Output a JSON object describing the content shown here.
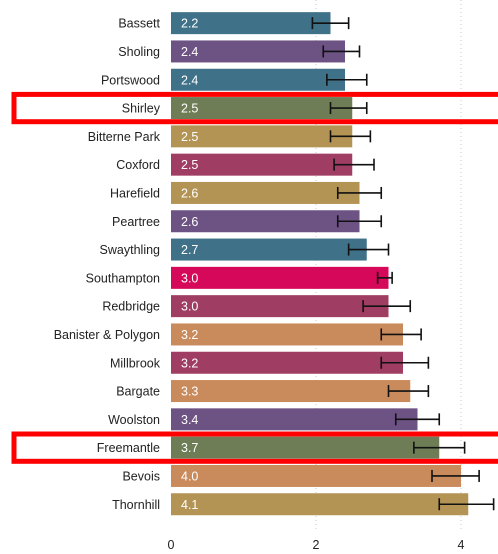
{
  "chart_data": {
    "type": "bar",
    "orientation": "horizontal",
    "categories": [
      "Bassett",
      "Sholing",
      "Portswood",
      "Shirley",
      "Bitterne Park",
      "Coxford",
      "Harefield",
      "Peartree",
      "Swaythling",
      "Southampton",
      "Redbridge",
      "Banister & Polygon",
      "Millbrook",
      "Bargate",
      "Woolston",
      "Freemantle",
      "Bevois",
      "Thornhill"
    ],
    "values": [
      2.2,
      2.4,
      2.4,
      2.5,
      2.5,
      2.5,
      2.6,
      2.6,
      2.7,
      3.0,
      3.0,
      3.2,
      3.2,
      3.3,
      3.4,
      3.7,
      4.0,
      4.1
    ],
    "value_labels": [
      "2.2",
      "2.4",
      "2.4",
      "2.5",
      "2.5",
      "2.5",
      "2.6",
      "2.6",
      "2.7",
      "3.0",
      "3.0",
      "3.2",
      "3.2",
      "3.3",
      "3.4",
      "3.7",
      "4.0",
      "4.1"
    ],
    "error_low": [
      1.95,
      2.1,
      2.15,
      2.2,
      2.2,
      2.25,
      2.3,
      2.3,
      2.45,
      2.85,
      2.65,
      2.9,
      2.9,
      3.0,
      3.1,
      3.35,
      3.6,
      3.7
    ],
    "error_high": [
      2.45,
      2.6,
      2.7,
      2.7,
      2.75,
      2.8,
      2.9,
      2.9,
      3.0,
      3.05,
      3.3,
      3.45,
      3.55,
      3.55,
      3.7,
      4.05,
      4.25,
      4.45
    ],
    "colors": [
      "#3f7188",
      "#6d5284",
      "#3f7188",
      "#6e7d56",
      "#b49454",
      "#a03d62",
      "#b49454",
      "#6d5284",
      "#3f7188",
      "#d6085a",
      "#a03d62",
      "#c98a5c",
      "#a03d62",
      "#c98a5c",
      "#6d5284",
      "#6e7d56",
      "#c98a5c",
      "#b49454"
    ],
    "highlighted": [
      "Shirley",
      "Freemantle"
    ],
    "highlight_color": "#ff0000",
    "x_ticks": [
      "0",
      "2",
      "4"
    ],
    "x_tick_values": [
      0,
      2,
      4
    ],
    "xlim": [
      0,
      4.45
    ],
    "grid": "vertical dotted"
  }
}
